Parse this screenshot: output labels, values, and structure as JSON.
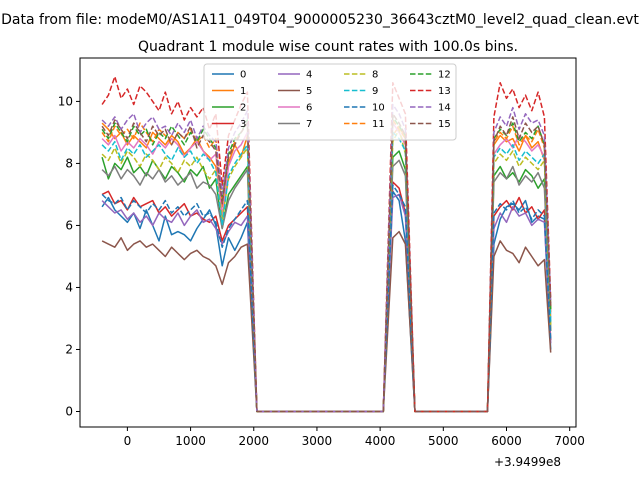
{
  "chart_data": {
    "type": "line",
    "suptitle": "Data from file: modeM0/AS1A11_049T04_9000005230_36643cztM0_level2_quad_clean.evt",
    "title": "Quadrant 1 module wise count rates with 100.0s bins.",
    "xlabel": "",
    "ylabel": "",
    "xlim": [
      -750,
      7100
    ],
    "ylim": [
      -0.5,
      11.4
    ],
    "xticks": [
      0,
      1000,
      2000,
      3000,
      4000,
      5000,
      6000,
      7000
    ],
    "yticks": [
      0,
      2,
      4,
      6,
      8,
      10
    ],
    "x_offset_label": "+3.9499e8",
    "legend_position": "top-center",
    "legend_columns": 4,
    "segments": [
      {
        "start": -400,
        "count": 24
      },
      {
        "start": 4200,
        "count": 3
      },
      {
        "start": 5800,
        "count": 10
      }
    ],
    "zero_runs": [
      [
        2050,
        4050
      ],
      [
        4550,
        5700
      ]
    ],
    "series": [
      {
        "name": "0",
        "color": "#1f77b4",
        "dash": "solid",
        "segments": [
          [
            6.6,
            6.9,
            6.5,
            6.3,
            6.1,
            6.4,
            5.9,
            6.5,
            6.0,
            5.5,
            6.3,
            5.7,
            5.8,
            5.7,
            5.5,
            5.9,
            6.2,
            6.5,
            6.0,
            4.7,
            5.6,
            5.2,
            5.6,
            6.1
          ],
          [
            7.1,
            6.8,
            5.5
          ],
          [
            5.4,
            6.2,
            6.6,
            6.7,
            6.5,
            6.8,
            6.1,
            6.3,
            6.2,
            2.0
          ]
        ]
      },
      {
        "name": "1",
        "color": "#ff7f0e",
        "dash": "solid",
        "segments": [
          [
            9.3,
            9.1,
            8.8,
            9.0,
            8.6,
            8.9,
            8.7,
            8.5,
            9.0,
            8.8,
            8.6,
            8.9,
            8.7,
            8.3,
            8.5,
            8.8,
            8.4,
            8.2,
            7.9,
            6.6,
            8.0,
            8.6,
            8.2,
            8.9
          ],
          [
            8.9,
            9.2,
            8.8
          ],
          [
            8.6,
            8.9,
            8.7,
            8.8,
            8.4,
            8.9,
            8.5,
            8.7,
            8.1,
            3.2
          ]
        ]
      },
      {
        "name": "2",
        "color": "#2ca02c",
        "dash": "solid",
        "segments": [
          [
            8.2,
            7.5,
            8.0,
            7.8,
            8.2,
            7.7,
            7.9,
            7.6,
            8.1,
            7.8,
            7.5,
            7.9,
            7.7,
            7.4,
            7.8,
            7.6,
            7.9,
            7.2,
            7.5,
            5.9,
            7.0,
            7.3,
            7.6,
            7.9
          ],
          [
            8.2,
            8.4,
            7.8
          ],
          [
            7.6,
            7.9,
            7.5,
            7.7,
            7.4,
            7.8,
            7.6,
            7.2,
            7.5,
            2.6
          ]
        ]
      },
      {
        "name": "3",
        "color": "#d62728",
        "dash": "solid",
        "segments": [
          [
            7.0,
            7.1,
            6.7,
            6.8,
            6.5,
            6.9,
            6.6,
            6.7,
            6.8,
            6.4,
            6.6,
            6.3,
            6.5,
            6.7,
            6.3,
            6.4,
            6.2,
            6.1,
            6.3,
            5.5,
            6.0,
            6.2,
            6.4,
            6.6
          ],
          [
            7.4,
            7.2,
            6.4
          ],
          [
            6.3,
            6.6,
            6.8,
            6.5,
            6.9,
            6.4,
            6.6,
            6.2,
            6.5,
            2.3
          ]
        ]
      },
      {
        "name": "4",
        "color": "#9467bd",
        "dash": "solid",
        "segments": [
          [
            6.8,
            6.6,
            6.4,
            6.5,
            6.2,
            6.4,
            6.1,
            6.3,
            6.0,
            6.4,
            6.2,
            6.1,
            6.4,
            6.0,
            6.3,
            6.5,
            6.1,
            6.2,
            5.9,
            5.4,
            5.8,
            6.1,
            6.0,
            6.3
          ],
          [
            6.9,
            7.0,
            6.3
          ],
          [
            5.9,
            6.4,
            6.1,
            6.6,
            6.3,
            6.4,
            6.0,
            6.2,
            6.1,
            2.2
          ]
        ]
      },
      {
        "name": "5",
        "color": "#8c564b",
        "dash": "solid",
        "segments": [
          [
            5.5,
            5.4,
            5.3,
            5.6,
            5.2,
            5.4,
            5.5,
            5.3,
            5.4,
            5.2,
            5.0,
            5.3,
            5.1,
            4.9,
            5.1,
            5.2,
            5.0,
            4.9,
            4.7,
            4.1,
            4.8,
            5.0,
            5.3,
            5.4
          ],
          [
            5.6,
            5.8,
            5.4
          ],
          [
            5.0,
            5.5,
            5.2,
            5.1,
            4.8,
            5.3,
            5.0,
            4.7,
            4.9,
            1.9
          ]
        ]
      },
      {
        "name": "6",
        "color": "#e377c2",
        "dash": "solid",
        "segments": [
          [
            8.8,
            8.6,
            8.9,
            8.4,
            8.7,
            8.5,
            8.8,
            8.6,
            8.3,
            8.7,
            8.5,
            8.8,
            8.6,
            8.2,
            8.5,
            8.7,
            8.4,
            8.1,
            8.3,
            6.3,
            7.9,
            8.4,
            8.6,
            9.0
          ],
          [
            9.3,
            9.0,
            8.6
          ],
          [
            8.3,
            8.6,
            8.8,
            8.5,
            8.9,
            8.7,
            8.4,
            8.6,
            8.2,
            3.0
          ]
        ]
      },
      {
        "name": "7",
        "color": "#7f7f7f",
        "dash": "solid",
        "segments": [
          [
            7.8,
            7.6,
            7.9,
            7.5,
            7.8,
            7.6,
            7.3,
            7.7,
            7.5,
            7.8,
            7.4,
            7.6,
            7.3,
            7.5,
            7.7,
            7.2,
            7.4,
            7.3,
            7.0,
            5.9,
            6.8,
            7.2,
            7.5,
            7.8
          ],
          [
            7.9,
            8.1,
            7.6
          ],
          [
            7.4,
            7.7,
            7.5,
            7.9,
            7.3,
            7.6,
            7.4,
            7.7,
            7.2,
            2.6
          ]
        ]
      },
      {
        "name": "8",
        "color": "#bcbd22",
        "dash": "dashed",
        "segments": [
          [
            8.3,
            8.1,
            8.5,
            8.0,
            8.4,
            8.2,
            7.9,
            8.3,
            8.1,
            7.8,
            8.2,
            8.0,
            7.7,
            8.1,
            7.9,
            8.2,
            7.8,
            7.5,
            7.8,
            6.2,
            7.5,
            7.9,
            8.2,
            8.5
          ],
          [
            8.7,
            9.1,
            8.3
          ],
          [
            8.0,
            8.3,
            8.1,
            8.4,
            7.9,
            8.2,
            8.0,
            7.8,
            8.1,
            2.8
          ]
        ]
      },
      {
        "name": "9",
        "color": "#17becf",
        "dash": "dashed",
        "segments": [
          [
            8.6,
            8.4,
            8.7,
            8.1,
            8.5,
            8.3,
            8.6,
            8.2,
            8.4,
            8.6,
            8.3,
            8.1,
            8.5,
            8.2,
            8.4,
            8.0,
            8.3,
            8.1,
            7.7,
            6.0,
            7.6,
            8.0,
            8.3,
            8.6
          ],
          [
            9.0,
            8.8,
            8.4
          ],
          [
            8.2,
            8.5,
            8.3,
            8.6,
            8.1,
            8.4,
            8.2,
            8.0,
            8.3,
            2.9
          ]
        ]
      },
      {
        "name": "10",
        "color": "#1f77b4",
        "dash": "dashed",
        "segments": [
          [
            7.0,
            6.8,
            6.7,
            6.9,
            6.5,
            6.8,
            6.6,
            6.4,
            6.7,
            6.5,
            6.8,
            6.4,
            6.6,
            6.3,
            6.5,
            6.7,
            6.3,
            6.4,
            6.1,
            5.3,
            5.9,
            6.2,
            6.5,
            6.8
          ],
          [
            7.3,
            7.0,
            6.6
          ],
          [
            6.4,
            6.7,
            6.5,
            6.8,
            6.4,
            6.6,
            6.2,
            6.5,
            6.3,
            2.3
          ]
        ]
      },
      {
        "name": "11",
        "color": "#ff7f0e",
        "dash": "dashed",
        "segments": [
          [
            9.0,
            8.7,
            9.2,
            8.9,
            9.1,
            8.8,
            9.3,
            9.0,
            8.7,
            9.1,
            8.9,
            8.6,
            9.0,
            8.8,
            9.1,
            8.7,
            8.9,
            8.5,
            8.8,
            6.8,
            8.2,
            8.7,
            9.0,
            9.3
          ],
          [
            9.4,
            9.1,
            8.8
          ],
          [
            8.7,
            9.0,
            8.8,
            9.2,
            8.6,
            8.9,
            8.7,
            9.1,
            8.5,
            3.3
          ]
        ]
      },
      {
        "name": "12",
        "color": "#2ca02c",
        "dash": "dashed",
        "segments": [
          [
            9.1,
            8.8,
            9.3,
            9.0,
            8.7,
            9.2,
            8.9,
            9.1,
            8.6,
            9.0,
            8.8,
            9.2,
            8.9,
            8.6,
            9.0,
            8.7,
            9.1,
            8.8,
            8.5,
            6.9,
            8.3,
            8.8,
            9.0,
            9.4
          ],
          [
            9.5,
            9.2,
            8.9
          ],
          [
            8.8,
            9.1,
            8.9,
            9.3,
            8.7,
            9.0,
            8.8,
            9.2,
            8.6,
            3.3
          ]
        ]
      },
      {
        "name": "13",
        "color": "#d62728",
        "dash": "dashed",
        "segments": [
          [
            9.9,
            10.2,
            10.8,
            10.1,
            10.4,
            9.9,
            10.5,
            10.3,
            10.0,
            9.7,
            10.3,
            9.6,
            10.0,
            9.4,
            9.8,
            9.5,
            9.8,
            9.1,
            9.6,
            7.3,
            8.9,
            9.4,
            9.9,
            10.3
          ],
          [
            10.6,
            10.1,
            9.6
          ],
          [
            9.5,
            10.6,
            10.1,
            10.4,
            9.8,
            10.2,
            9.7,
            10.3,
            9.5,
            3.6
          ]
        ]
      },
      {
        "name": "14",
        "color": "#9467bd",
        "dash": "dashed",
        "segments": [
          [
            9.4,
            9.2,
            9.5,
            9.1,
            9.4,
            9.6,
            9.0,
            9.3,
            9.5,
            9.1,
            9.2,
            8.9,
            9.3,
            9.0,
            9.4,
            8.8,
            9.2,
            8.9,
            8.7,
            7.0,
            8.5,
            9.0,
            9.3,
            9.7
          ],
          [
            9.9,
            9.6,
            9.1
          ],
          [
            9.0,
            9.5,
            9.2,
            9.8,
            9.1,
            9.6,
            9.3,
            9.4,
            8.9,
            3.5
          ]
        ]
      },
      {
        "name": "15",
        "color": "#8c564b",
        "dash": "dashed",
        "segments": [
          [
            9.2,
            8.9,
            9.4,
            9.1,
            8.8,
            9.3,
            9.0,
            8.7,
            9.2,
            8.9,
            9.1,
            8.6,
            9.0,
            8.8,
            9.2,
            8.5,
            8.9,
            8.7,
            8.4,
            6.7,
            8.2,
            8.6,
            9.0,
            9.3
          ],
          [
            9.6,
            9.3,
            8.9
          ],
          [
            8.7,
            9.2,
            8.9,
            9.5,
            8.8,
            9.3,
            9.0,
            9.2,
            8.6,
            3.4
          ]
        ]
      }
    ]
  }
}
